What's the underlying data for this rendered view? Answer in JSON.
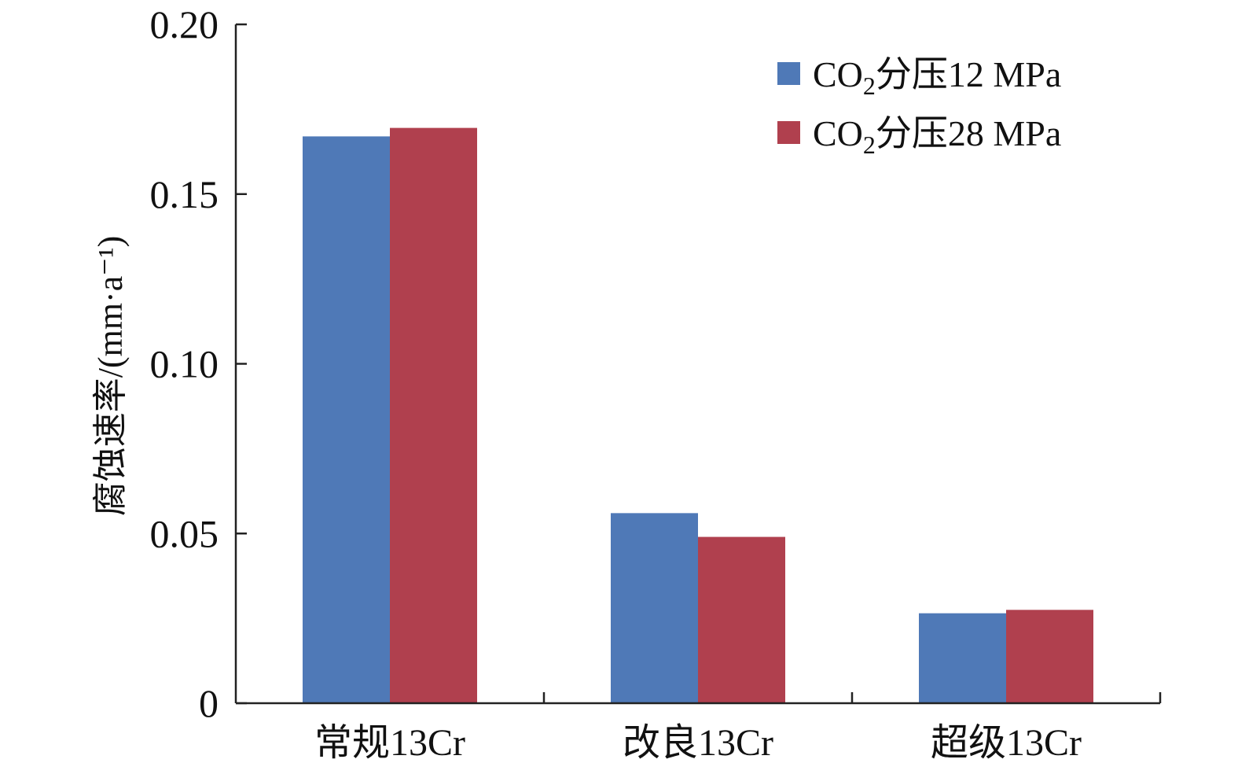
{
  "chart_data": {
    "type": "bar",
    "ylabel": "腐蚀速率/(mm·a⁻¹)",
    "ylim": [
      0,
      0.2
    ],
    "yticks": [
      "0",
      "0.05",
      "0.10",
      "0.15",
      "0.20"
    ],
    "ytick_values": [
      0,
      0.05,
      0.1,
      0.15,
      0.2
    ],
    "categories": [
      "常规13Cr",
      "改良13Cr",
      "超级13Cr"
    ],
    "series": [
      {
        "name": "CO₂分压12 MPa",
        "color": "#4f79b7",
        "values": [
          0.167,
          0.056,
          0.0265
        ]
      },
      {
        "name": "CO₂分压28 MPa",
        "color": "#b0404e",
        "values": [
          0.1695,
          0.049,
          0.0275
        ]
      }
    ],
    "grid": false,
    "legend_position": "top-right"
  }
}
